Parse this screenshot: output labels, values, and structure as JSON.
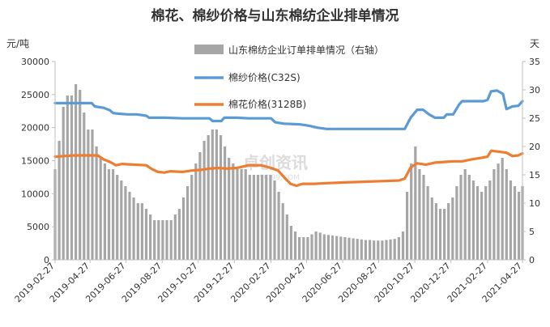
{
  "chart_data": {
    "type": "bar+line",
    "title": "棉花、棉纱价格与山东棉纺企业排单情况",
    "left_unit": "元/吨",
    "right_unit": "天",
    "watermark": "卓创资讯",
    "watermark_sub": "SCI99.COM",
    "y_left": {
      "min": 0,
      "max": 30000,
      "step": 5000,
      "ticks": [
        "0",
        "5000",
        "10000",
        "15000",
        "20000",
        "25000",
        "30000"
      ]
    },
    "y_right": {
      "min": 0,
      "max": 35,
      "step": 5,
      "ticks": [
        "0",
        "5",
        "10",
        "15",
        "20",
        "25",
        "30",
        "35"
      ]
    },
    "x_start": "2019-02-27",
    "x_end": "2021-04-27",
    "x_ticks": [
      "2019-02-27",
      "2019-04-27",
      "2019-06-27",
      "2019-08-27",
      "2019-10-27",
      "2019-12-27",
      "2020-02-27",
      "2020-04-27",
      "2020-06-27",
      "2020-08-27",
      "2020-10-27",
      "2020-12-27",
      "2021-02-27",
      "2021-04-27"
    ],
    "colors": {
      "bars": "#a6a6a6",
      "yarn": "#5b9bd5",
      "cotton": "#ed7d31",
      "axis": "#bfbfbf"
    },
    "series": [
      {
        "name": "山东棉纺企业订单排单情况（右轴）",
        "type": "bar",
        "axis": "right",
        "points": [
          [
            "2019-02-27",
            16
          ],
          [
            "2019-03-06",
            21
          ],
          [
            "2019-03-13",
            27
          ],
          [
            "2019-03-20",
            29
          ],
          [
            "2019-03-27",
            29
          ],
          [
            "2019-04-03",
            31
          ],
          [
            "2019-04-10",
            30
          ],
          [
            "2019-04-17",
            26
          ],
          [
            "2019-04-24",
            23
          ],
          [
            "2019-05-01",
            23
          ],
          [
            "2019-05-08",
            20
          ],
          [
            "2019-05-15",
            18
          ],
          [
            "2019-05-22",
            17
          ],
          [
            "2019-05-29",
            16
          ],
          [
            "2019-06-05",
            16
          ],
          [
            "2019-06-12",
            15
          ],
          [
            "2019-06-19",
            14
          ],
          [
            "2019-06-26",
            13
          ],
          [
            "2019-07-03",
            12
          ],
          [
            "2019-07-10",
            11
          ],
          [
            "2019-07-17",
            10
          ],
          [
            "2019-07-24",
            10
          ],
          [
            "2019-07-31",
            9
          ],
          [
            "2019-08-07",
            8
          ],
          [
            "2019-08-14",
            7
          ],
          [
            "2019-08-21",
            7
          ],
          [
            "2019-08-28",
            7
          ],
          [
            "2019-09-04",
            7
          ],
          [
            "2019-09-11",
            7
          ],
          [
            "2019-09-18",
            8
          ],
          [
            "2019-09-25",
            9
          ],
          [
            "2019-10-02",
            11
          ],
          [
            "2019-10-09",
            13
          ],
          [
            "2019-10-16",
            15
          ],
          [
            "2019-10-23",
            17
          ],
          [
            "2019-10-30",
            19
          ],
          [
            "2019-11-06",
            21
          ],
          [
            "2019-11-13",
            22
          ],
          [
            "2019-11-20",
            23
          ],
          [
            "2019-11-27",
            23
          ],
          [
            "2019-12-04",
            22
          ],
          [
            "2019-12-11",
            20
          ],
          [
            "2019-12-18",
            18
          ],
          [
            "2019-12-25",
            17
          ],
          [
            "2020-01-01",
            16
          ],
          [
            "2020-01-08",
            16
          ],
          [
            "2020-01-15",
            16
          ],
          [
            "2020-01-22",
            15
          ],
          [
            "2020-01-29",
            15
          ],
          [
            "2020-02-05",
            15
          ],
          [
            "2020-02-12",
            15
          ],
          [
            "2020-02-19",
            15
          ],
          [
            "2020-02-26",
            15
          ],
          [
            "2020-03-04",
            14
          ],
          [
            "2020-03-11",
            12
          ],
          [
            "2020-03-18",
            10
          ],
          [
            "2020-03-25",
            8
          ],
          [
            "2020-04-01",
            6
          ],
          [
            "2020-04-08",
            5
          ],
          [
            "2020-04-15",
            4
          ],
          [
            "2020-04-22",
            4
          ],
          [
            "2020-04-29",
            4
          ],
          [
            "2020-05-06",
            4.5
          ],
          [
            "2020-05-13",
            5
          ],
          [
            "2020-05-20",
            4.8
          ],
          [
            "2020-05-27",
            4.5
          ],
          [
            "2020-06-03",
            4.4
          ],
          [
            "2020-06-10",
            4.3
          ],
          [
            "2020-06-17",
            4.2
          ],
          [
            "2020-06-24",
            4.1
          ],
          [
            "2020-07-01",
            4
          ],
          [
            "2020-07-08",
            3.9
          ],
          [
            "2020-07-15",
            3.8
          ],
          [
            "2020-07-22",
            3.7
          ],
          [
            "2020-07-29",
            3.6
          ],
          [
            "2020-08-05",
            3.5
          ],
          [
            "2020-08-12",
            3.5
          ],
          [
            "2020-08-19",
            3.4
          ],
          [
            "2020-08-26",
            3.4
          ],
          [
            "2020-09-02",
            3.4
          ],
          [
            "2020-09-09",
            3.5
          ],
          [
            "2020-09-16",
            3.6
          ],
          [
            "2020-09-23",
            3.7
          ],
          [
            "2020-09-30",
            4
          ],
          [
            "2020-10-07",
            5
          ],
          [
            "2020-10-14",
            12
          ],
          [
            "2020-10-21",
            17
          ],
          [
            "2020-10-28",
            20
          ],
          [
            "2020-11-04",
            16
          ],
          [
            "2020-11-11",
            15
          ],
          [
            "2020-11-18",
            13
          ],
          [
            "2020-11-25",
            11
          ],
          [
            "2020-12-02",
            10
          ],
          [
            "2020-12-09",
            9
          ],
          [
            "2020-12-16",
            9
          ],
          [
            "2020-12-23",
            10
          ],
          [
            "2020-12-30",
            11
          ],
          [
            "2021-01-06",
            13
          ],
          [
            "2021-01-13",
            15
          ],
          [
            "2021-01-20",
            16
          ],
          [
            "2021-01-27",
            15
          ],
          [
            "2021-02-03",
            14
          ],
          [
            "2021-02-10",
            13
          ],
          [
            "2021-02-17",
            12
          ],
          [
            "2021-02-24",
            13
          ],
          [
            "2021-03-03",
            14
          ],
          [
            "2021-03-10",
            16
          ],
          [
            "2021-03-17",
            17
          ],
          [
            "2021-03-24",
            18
          ],
          [
            "2021-03-31",
            16
          ],
          [
            "2021-04-07",
            14
          ],
          [
            "2021-04-14",
            13
          ],
          [
            "2021-04-21",
            12
          ],
          [
            "2021-04-27",
            13
          ]
        ]
      },
      {
        "name": "棉纱价格(C32S)",
        "type": "line",
        "axis": "left",
        "points": [
          [
            "2019-02-27",
            23700
          ],
          [
            "2019-04-30",
            23700
          ],
          [
            "2019-05-05",
            23200
          ],
          [
            "2019-05-20",
            23000
          ],
          [
            "2019-05-31",
            22600
          ],
          [
            "2019-06-05",
            22200
          ],
          [
            "2019-06-15",
            22100
          ],
          [
            "2019-06-30",
            22000
          ],
          [
            "2019-07-15",
            22000
          ],
          [
            "2019-07-31",
            21800
          ],
          [
            "2019-08-05",
            21500
          ],
          [
            "2019-08-31",
            21500
          ],
          [
            "2019-09-30",
            21400
          ],
          [
            "2019-10-31",
            21400
          ],
          [
            "2019-11-15",
            21400
          ],
          [
            "2019-11-20",
            21000
          ],
          [
            "2019-12-05",
            21000
          ],
          [
            "2019-12-10",
            21500
          ],
          [
            "2019-12-31",
            21500
          ],
          [
            "2020-01-20",
            21400
          ],
          [
            "2020-02-27",
            21400
          ],
          [
            "2020-03-05",
            20800
          ],
          [
            "2020-03-20",
            20600
          ],
          [
            "2020-04-15",
            20500
          ],
          [
            "2020-04-30",
            20300
          ],
          [
            "2020-05-15",
            20000
          ],
          [
            "2020-05-31",
            19800
          ],
          [
            "2020-06-15",
            19800
          ],
          [
            "2020-07-31",
            19800
          ],
          [
            "2020-08-31",
            19800
          ],
          [
            "2020-09-30",
            19800
          ],
          [
            "2020-10-10",
            19800
          ],
          [
            "2020-10-20",
            21500
          ],
          [
            "2020-10-31",
            22700
          ],
          [
            "2020-11-10",
            22700
          ],
          [
            "2020-11-20",
            22000
          ],
          [
            "2020-11-30",
            21500
          ],
          [
            "2020-12-15",
            21500
          ],
          [
            "2020-12-20",
            22000
          ],
          [
            "2020-12-31",
            22000
          ],
          [
            "2021-01-10",
            23500
          ],
          [
            "2021-01-15",
            24000
          ],
          [
            "2021-01-31",
            24000
          ],
          [
            "2021-02-20",
            24000
          ],
          [
            "2021-02-27",
            24200
          ],
          [
            "2021-03-05",
            25500
          ],
          [
            "2021-03-15",
            25600
          ],
          [
            "2021-03-25",
            25100
          ],
          [
            "2021-03-31",
            22800
          ],
          [
            "2021-04-10",
            23200
          ],
          [
            "2021-04-20",
            23300
          ],
          [
            "2021-04-27",
            24000
          ]
        ]
      },
      {
        "name": "棉花价格(3128B)",
        "type": "line",
        "axis": "left",
        "points": [
          [
            "2019-02-27",
            15600
          ],
          [
            "2019-03-15",
            15700
          ],
          [
            "2019-04-01",
            15800
          ],
          [
            "2019-05-10",
            15800
          ],
          [
            "2019-05-20",
            15200
          ],
          [
            "2019-05-31",
            14800
          ],
          [
            "2019-06-10",
            14300
          ],
          [
            "2019-06-20",
            14500
          ],
          [
            "2019-07-10",
            14400
          ],
          [
            "2019-07-31",
            14300
          ],
          [
            "2019-08-10",
            13700
          ],
          [
            "2019-08-20",
            13300
          ],
          [
            "2019-08-31",
            13200
          ],
          [
            "2019-09-10",
            13400
          ],
          [
            "2019-09-30",
            13300
          ],
          [
            "2019-10-15",
            13500
          ],
          [
            "2019-10-31",
            13600
          ],
          [
            "2019-11-15",
            13800
          ],
          [
            "2019-11-30",
            13900
          ],
          [
            "2019-12-15",
            13800
          ],
          [
            "2019-12-31",
            13900
          ],
          [
            "2020-01-10",
            14100
          ],
          [
            "2020-01-20",
            14300
          ],
          [
            "2020-02-10",
            14300
          ],
          [
            "2020-02-27",
            13900
          ],
          [
            "2020-03-10",
            13500
          ],
          [
            "2020-03-20",
            12500
          ],
          [
            "2020-03-31",
            11500
          ],
          [
            "2020-04-10",
            11200
          ],
          [
            "2020-04-20",
            11500
          ],
          [
            "2020-05-10",
            11500
          ],
          [
            "2020-05-31",
            11600
          ],
          [
            "2020-06-30",
            11700
          ],
          [
            "2020-07-31",
            11800
          ],
          [
            "2020-08-31",
            11900
          ],
          [
            "2020-09-30",
            12000
          ],
          [
            "2020-10-10",
            12300
          ],
          [
            "2020-10-20",
            14000
          ],
          [
            "2020-10-31",
            14600
          ],
          [
            "2020-11-15",
            14400
          ],
          [
            "2020-11-30",
            14700
          ],
          [
            "2020-12-15",
            14800
          ],
          [
            "2020-12-31",
            14900
          ],
          [
            "2021-01-15",
            14900
          ],
          [
            "2021-01-31",
            15200
          ],
          [
            "2021-02-15",
            15400
          ],
          [
            "2021-02-27",
            15600
          ],
          [
            "2021-03-05",
            16500
          ],
          [
            "2021-03-15",
            16400
          ],
          [
            "2021-03-31",
            16200
          ],
          [
            "2021-04-10",
            15700
          ],
          [
            "2021-04-20",
            15800
          ],
          [
            "2021-04-27",
            16100
          ]
        ]
      }
    ]
  }
}
